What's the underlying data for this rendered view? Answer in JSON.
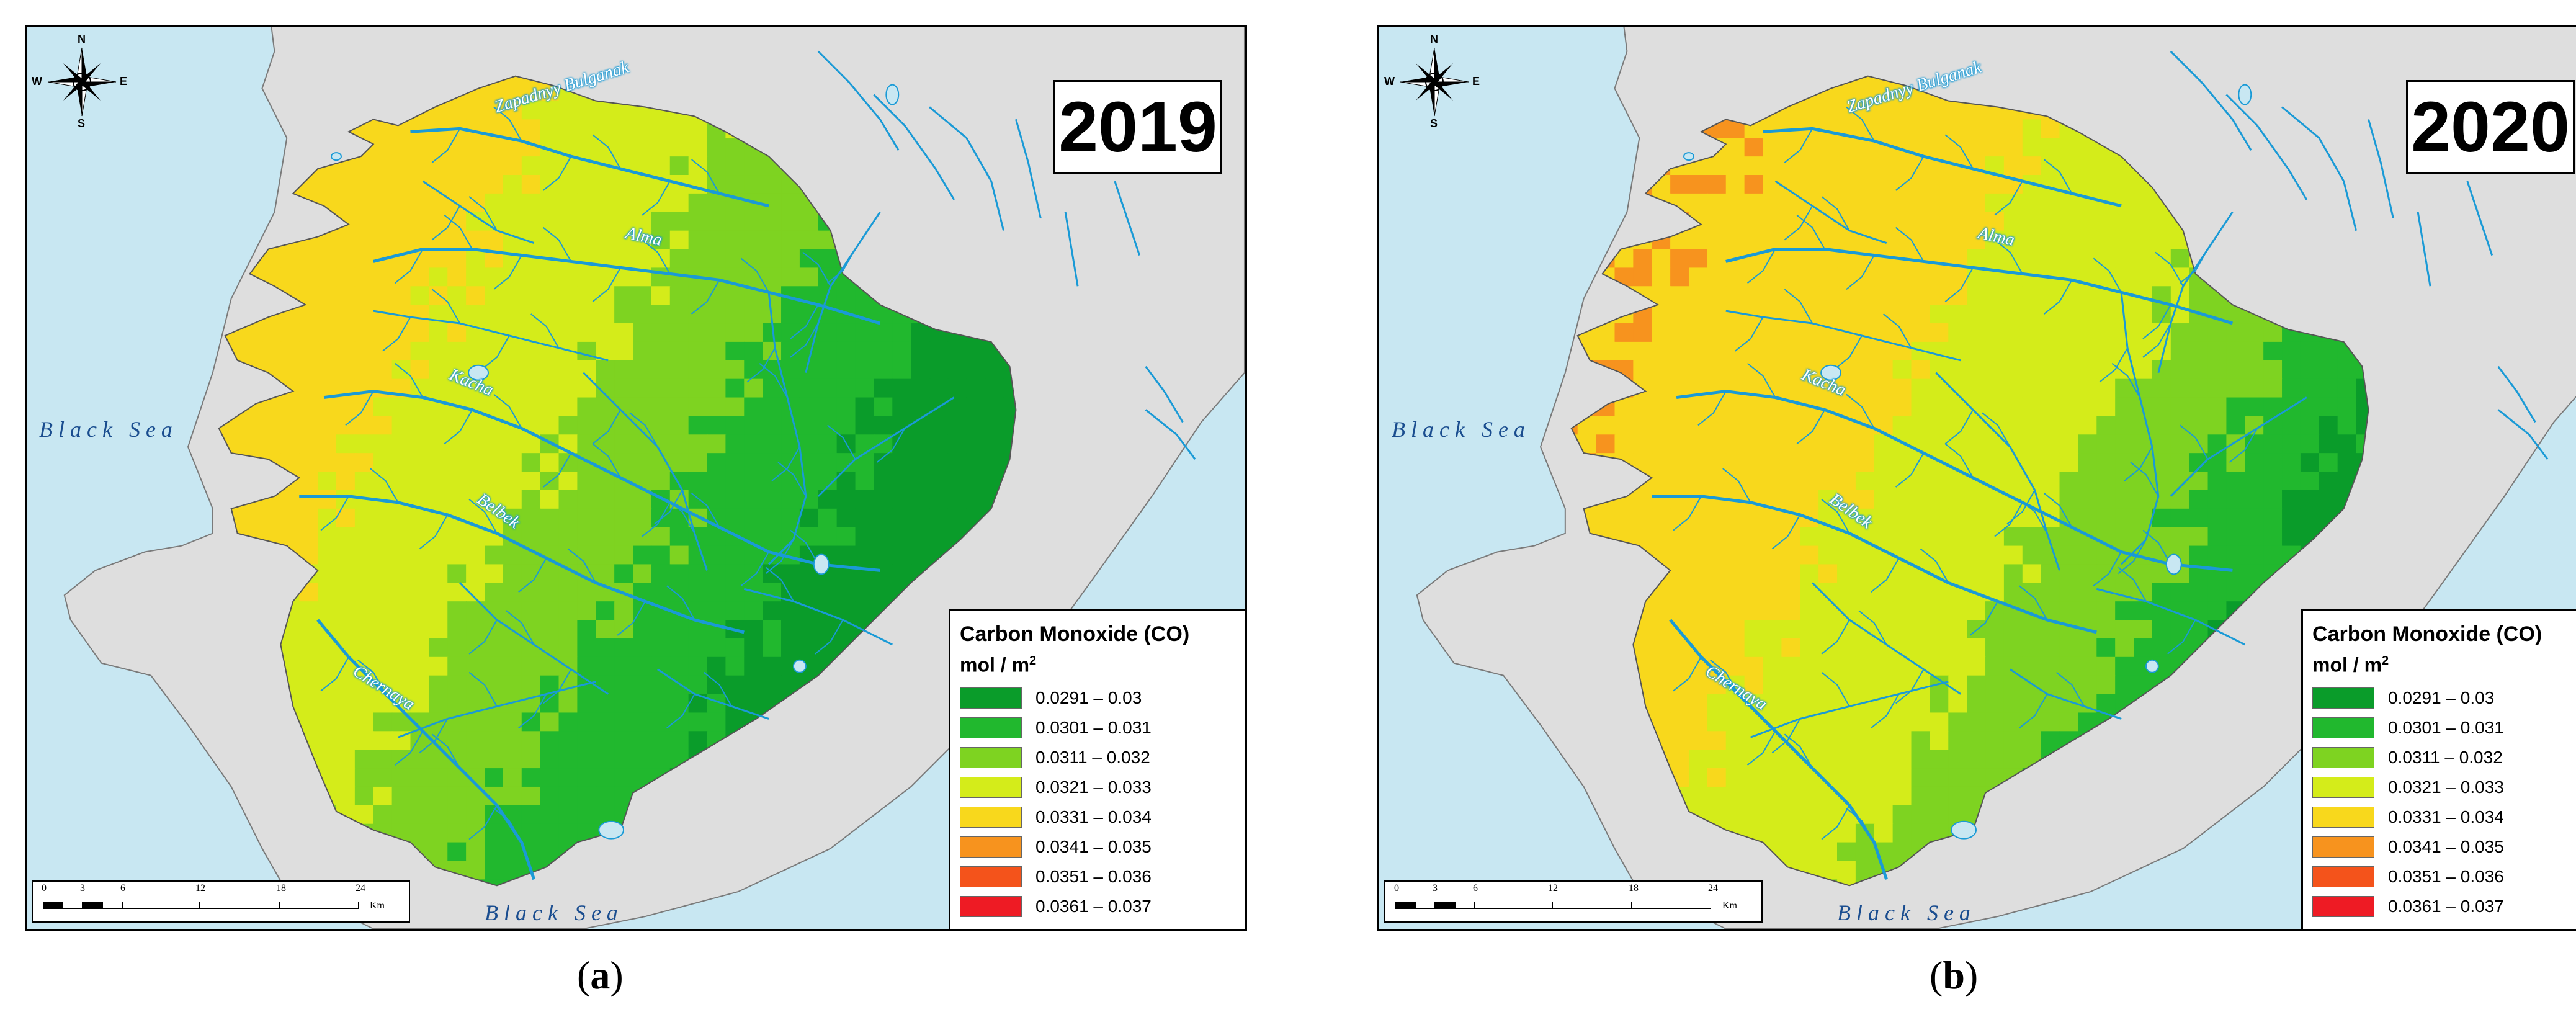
{
  "panels": [
    {
      "year": "2019",
      "caption_open": "(",
      "caption_letter": "a",
      "caption_close": ")",
      "distribution": "mostly-low"
    },
    {
      "year": "2020",
      "caption_open": "(",
      "caption_letter": "b",
      "caption_close": ")",
      "distribution": "mostly-high"
    }
  ],
  "legend": {
    "title": "Carbon Monoxide (CO)",
    "unit": "mol / m",
    "unit_sup": "2",
    "classes": [
      {
        "label": "0.0291 – 0.03",
        "color": "#0a9c2a"
      },
      {
        "label": "0.0301 – 0.031",
        "color": "#21b82e"
      },
      {
        "label": "0.0311 – 0.032",
        "color": "#7ed321"
      },
      {
        "label": "0.0321 – 0.033",
        "color": "#d4ec1a"
      },
      {
        "label": "0.0331 – 0.034",
        "color": "#f8d81c"
      },
      {
        "label": "0.0341 – 0.035",
        "color": "#f7931e"
      },
      {
        "label": "0.0351 – 0.036",
        "color": "#f4531b"
      },
      {
        "label": "0.0361 – 0.037",
        "color": "#ee1b24"
      }
    ]
  },
  "labels": {
    "sea_west": "Black Sea",
    "sea_south": "Black Sea",
    "rivers": [
      "Zapadnyy Bulganak",
      "Alma",
      "Kacha",
      "Belbek",
      "Chernaya"
    ]
  },
  "compass": {
    "n": "N",
    "s": "S",
    "e": "E",
    "w": "W"
  },
  "scalebar": {
    "ticks": [
      "0",
      "3",
      "6",
      "12",
      "18",
      "24"
    ],
    "unit": "Km"
  },
  "colors": {
    "water": "#c8e7f2",
    "land_outside": "#dedede",
    "river": "#1a9ad6",
    "coast": "#7a7a7a"
  }
}
